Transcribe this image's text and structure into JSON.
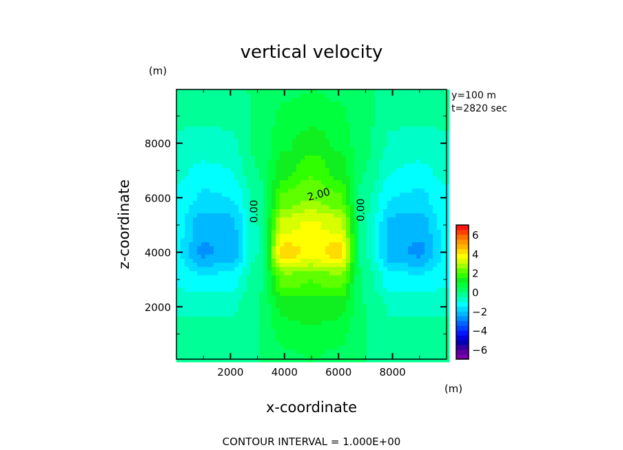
{
  "chart_data": {
    "type": "heatmap",
    "title": "vertical velocity",
    "xlabel": "x-coordinate",
    "ylabel": "z-coordinate",
    "x_unit": "(m)",
    "y_unit": "(m)",
    "annotations": [
      "y=100 m",
      "t=2820 sec"
    ],
    "footer": "CONTOUR INTERVAL = 1.000E+00",
    "xlim": [
      0,
      10000
    ],
    "ylim": [
      75,
      9975
    ],
    "xticks": [
      2000,
      4000,
      6000,
      8000
    ],
    "xtick_labels": [
      "2000",
      "4000",
      "6000",
      "8000"
    ],
    "yticks": [
      2000,
      4000,
      6000,
      8000
    ],
    "ytick_labels": [
      "2000",
      "4000",
      "6000",
      "8000"
    ],
    "contour_labels": [
      {
        "text": "0.00",
        "x": 3000,
        "z": 5500
      },
      {
        "text": "0.00",
        "x": 6950,
        "z": 5550
      },
      {
        "text": "2.00",
        "x": 5300,
        "z": 6000
      }
    ],
    "grid_x": [
      0,
      1000,
      2000,
      3000,
      4000,
      5000,
      6000,
      7000,
      8000,
      9000,
      10000
    ],
    "grid_z": [
      10000,
      9000,
      8000,
      7000,
      6000,
      5000,
      4000,
      3000,
      2000,
      1000,
      0
    ],
    "values": [
      [
        -0.3,
        -0.3,
        -0.3,
        0.1,
        0.4,
        0.5,
        0.4,
        0.1,
        -0.3,
        -0.3,
        -0.3
      ],
      [
        -0.4,
        -0.4,
        -0.4,
        0.1,
        0.6,
        0.8,
        0.6,
        0.1,
        -0.4,
        -0.4,
        -0.4
      ],
      [
        -0.6,
        -0.7,
        -0.6,
        0.1,
        0.9,
        1.3,
        0.9,
        0.1,
        -0.6,
        -0.7,
        -0.6
      ],
      [
        -0.9,
        -1.1,
        -1.0,
        0.0,
        1.3,
        1.9,
        1.3,
        0.0,
        -1.0,
        -1.1,
        -0.9
      ],
      [
        -1.1,
        -1.6,
        -1.5,
        -0.3,
        2.1,
        2.5,
        2.1,
        -0.3,
        -1.5,
        -1.6,
        -1.1
      ],
      [
        -1.3,
        -2.3,
        -2.2,
        -0.5,
        3.3,
        3.6,
        3.3,
        -0.5,
        -2.2,
        -2.3,
        -1.3
      ],
      [
        -1.4,
        -2.6,
        -2.3,
        -0.5,
        4.3,
        3.8,
        4.3,
        -0.5,
        -2.3,
        -2.6,
        -1.4
      ],
      [
        -1.1,
        -1.4,
        -1.3,
        -0.2,
        2.3,
        2.0,
        2.3,
        -0.2,
        -1.3,
        -1.4,
        -1.1
      ],
      [
        -0.6,
        -0.6,
        -0.6,
        0.0,
        1.2,
        1.3,
        1.2,
        0.0,
        -0.6,
        -0.6,
        -0.6
      ],
      [
        -0.3,
        -0.3,
        -0.3,
        0.0,
        0.7,
        0.9,
        0.7,
        0.0,
        -0.3,
        -0.3,
        -0.3
      ],
      [
        -0.1,
        -0.1,
        -0.1,
        0.0,
        0.3,
        0.5,
        0.3,
        0.0,
        -0.1,
        -0.1,
        -0.1
      ]
    ],
    "colorbar": {
      "min": -7,
      "max": 7,
      "step": 0.5,
      "tick_values": [
        6,
        4,
        2,
        0,
        -2,
        -4,
        -6
      ],
      "tick_labels": [
        "6",
        "4",
        "2",
        "0",
        "−2",
        "−4",
        "−6"
      ],
      "colors": [
        "#7800a8",
        "#5a00a0",
        "#3200a0",
        "#0000b4",
        "#0000e0",
        "#0018ff",
        "#0040ff",
        "#0064ff",
        "#0090ff",
        "#00b8ff",
        "#00dcff",
        "#00ffff",
        "#00ffc8",
        "#00ff96",
        "#00ff64",
        "#00ff3c",
        "#10f020",
        "#30ff00",
        "#60ff00",
        "#a0ff00",
        "#d8ff00",
        "#ffff00",
        "#ffdc00",
        "#ffb400",
        "#ff9600",
        "#ff7000",
        "#ff4000",
        "#ff1414",
        "#ff3c3c",
        "#ff6464",
        "#ff9696"
      ]
    }
  }
}
